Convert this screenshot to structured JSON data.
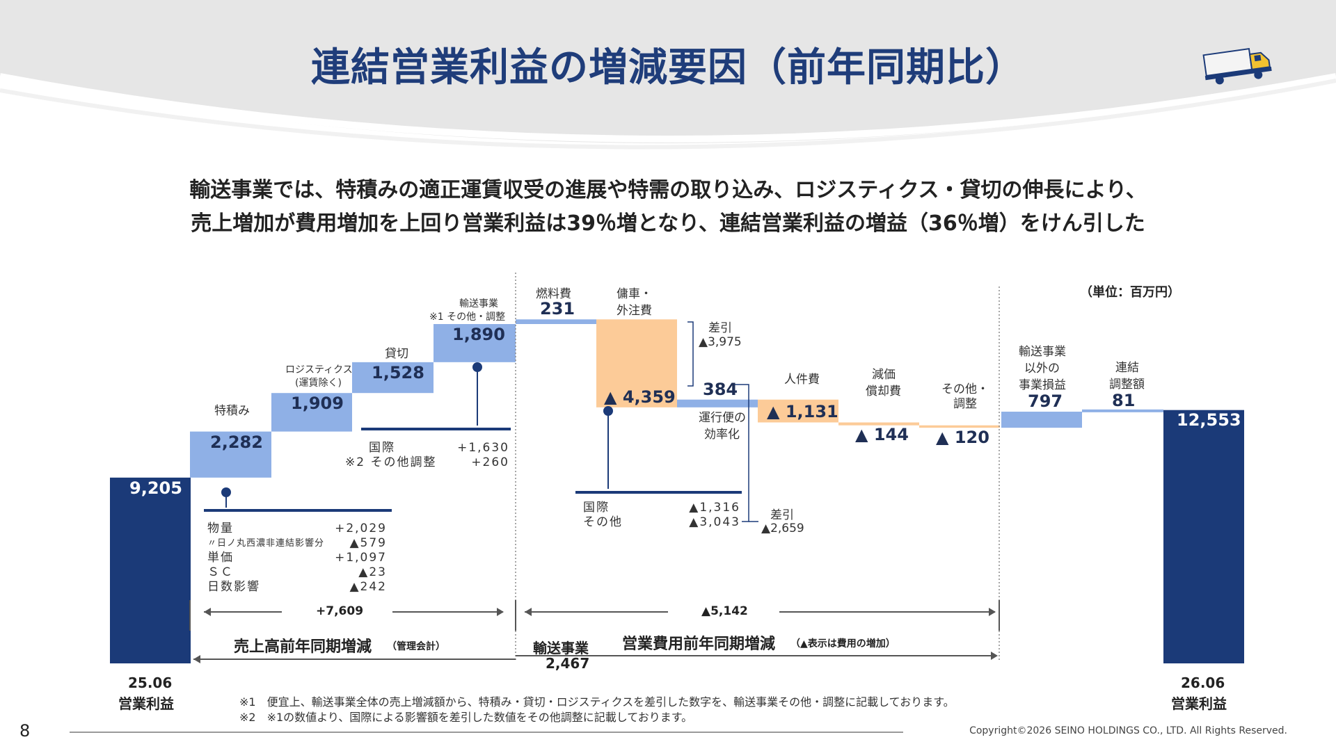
{
  "header": {
    "title": "連結営業利益の増減要因（前年同期比）",
    "subtitle_line1": "輸送事業では、特積みの適正運賃収受の進展や特需の取り込み、ロジスティクス・貸切の伸長により、",
    "subtitle_line2": "売上増加が費用増加を上回り営業利益は39％増となり、連結営業利益の増益（36％増）をけん引した"
  },
  "unit": "（単位：百万円）",
  "chart_data": {
    "type": "waterfall",
    "steps": [
      {
        "label_lines": [
          "25.06",
          "営業利益"
        ],
        "value": 9205,
        "text": "9,205",
        "kind": "total",
        "base": 0,
        "end": 9205
      },
      {
        "label_lines": [
          "特積み"
        ],
        "value": 2282,
        "text": "2,282",
        "kind": "increase",
        "base": 9205,
        "end": 11487
      },
      {
        "label_lines": [
          "ロジスティクス",
          "(運賃除く)"
        ],
        "value": 1909,
        "text": "1,909",
        "kind": "increase",
        "base": 11487,
        "end": 13396
      },
      {
        "label_lines": [
          "貸切"
        ],
        "value": 1528,
        "text": "1,528",
        "kind": "increase",
        "base": 13396,
        "end": 14924
      },
      {
        "label_lines": [
          "輸送事業",
          "※1 その他・調整"
        ],
        "value": 1890,
        "text": "1,890",
        "kind": "increase",
        "base": 14924,
        "end": 16814
      },
      {
        "label_lines": [
          "燃料費"
        ],
        "value": 231,
        "text": "231",
        "kind": "increase",
        "base": 16814,
        "end": 17045
      },
      {
        "label_lines": [
          "傭車・",
          "外注費"
        ],
        "value": -4359,
        "text": "▲ 4,359",
        "kind": "decrease",
        "base": 17045,
        "end": 12686
      },
      {
        "label_lines": [
          "運行便の",
          "効率化"
        ],
        "value": 384,
        "text": "384",
        "kind": "increase",
        "base": 12686,
        "end": 13070
      },
      {
        "label_lines": [
          "人件費"
        ],
        "value": -1131,
        "text": "▲ 1,131",
        "kind": "decrease",
        "base": 13070,
        "end": 11939
      },
      {
        "label_lines": [
          "減価",
          "償却費"
        ],
        "value": -144,
        "text": "▲ 144",
        "kind": "decrease",
        "base": 11939,
        "end": 11795
      },
      {
        "label_lines": [
          "その他・",
          "調整"
        ],
        "value": -120,
        "text": "▲ 120",
        "kind": "decrease",
        "base": 11795,
        "end": 11675
      },
      {
        "label_lines": [
          "輸送事業",
          "以外の",
          "事業損益"
        ],
        "value": 797,
        "text": "797",
        "kind": "increase",
        "base": 11675,
        "end": 12472
      },
      {
        "label_lines": [
          "連結",
          "調整額"
        ],
        "value": 81,
        "text": "81",
        "kind": "increase",
        "base": 12472,
        "end": 12553
      },
      {
        "label_lines": [
          "26.06",
          "営業利益"
        ],
        "value": 12553,
        "text": "12,553",
        "kind": "total",
        "base": 0,
        "end": 12553
      }
    ],
    "colors": {
      "total": "#1b3a78",
      "increase": "#8fb0e6",
      "decrease": "#fccb98"
    }
  },
  "annotations": {
    "sashihiki_1_label": "差引",
    "sashihiki_1_value": "▲3,975",
    "sashihiki_2_label": "差引",
    "sashihiki_2_value": "▲2,659",
    "tokuzumi_breakdown": [
      {
        "name": "物量",
        "value": "+2,029"
      },
      {
        "name": "〃日ノ丸西濃非連結影響分",
        "value": "▲579"
      },
      {
        "name": "単価",
        "value": "+1,097"
      },
      {
        "name": "ＳＣ",
        "value": "▲23"
      },
      {
        "name": "日数影響",
        "value": "▲242"
      }
    ],
    "other_breakdown": [
      {
        "name": "国際",
        "value": "+1,630"
      },
      {
        "name": "※2 その他調整",
        "value": "+260"
      }
    ],
    "yosha_breakdown": [
      {
        "name": "国際",
        "value": "▲1,316"
      },
      {
        "name": "その他",
        "value": "▲3,043"
      }
    ],
    "sales_change_value": "+7,609",
    "cost_change_value": "▲5,142",
    "sales_change_title": "売上高前年同期増減",
    "sales_change_note": "（管理会計）",
    "cost_change_title": "営業費用前年同期増減",
    "cost_change_note": "（▲表示は費用の増加）",
    "transport_label": "輸送事業",
    "transport_value": "2,467"
  },
  "footnotes": {
    "note1": "※1　便宜上、輸送事業全体の売上増減額から、特積み・貸切・ロジスティクスを差引した数字を、輸送事業その他・調整に記載しております。",
    "note2": "※2　※1の数値より、国際による影響額を差引した数値をその他調整に記載しております。"
  },
  "page_number": "8",
  "copyright": "Copyright©2026  SEINO HOLDINGS CO., LTD.  All  Rights Reserved."
}
